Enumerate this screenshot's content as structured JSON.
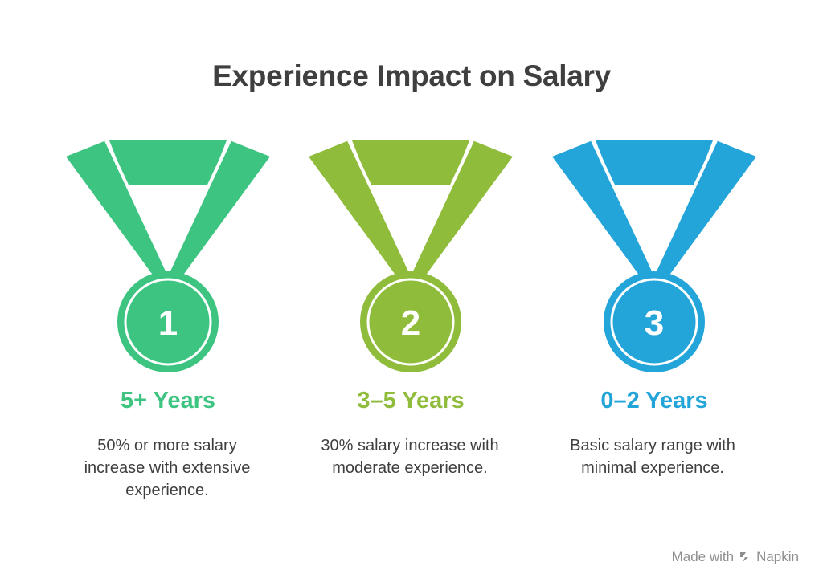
{
  "title": "Experience Impact on Salary",
  "colors": {
    "green": "#3DC481",
    "lime": "#8FBC3B",
    "blue": "#24A5DA",
    "title_text": "#3f3f3f",
    "body_text": "#3f3f3f",
    "footer_text": "#8e8e8e"
  },
  "items": [
    {
      "rank": "1",
      "heading": "5+ Years",
      "description": "50% or more salary increase with extensive experience.",
      "color": "#3DC481"
    },
    {
      "rank": "2",
      "heading": "3–5 Years",
      "description": "30% salary increase with moderate experience.",
      "color": "#8FBC3B"
    },
    {
      "rank": "3",
      "heading": "0–2 Years",
      "description": "Basic salary range with minimal experience.",
      "color": "#24A5DA"
    }
  ],
  "footer": {
    "text": "Made with",
    "brand": "Napkin",
    "icon": "napkin-logo-icon"
  }
}
